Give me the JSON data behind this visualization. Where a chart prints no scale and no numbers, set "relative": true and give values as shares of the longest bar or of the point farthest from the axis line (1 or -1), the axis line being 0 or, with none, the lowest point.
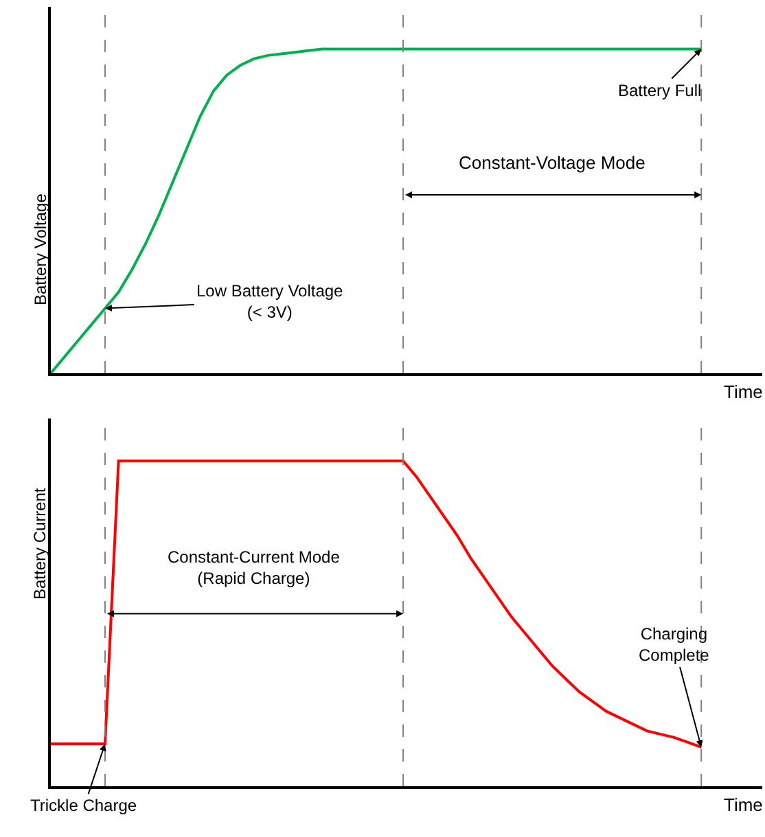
{
  "chart_data": [
    {
      "type": "line",
      "relative": true,
      "ylabel": "Battery Voltage",
      "xlabel": "Time",
      "grid": "x",
      "marker": "none",
      "line_style": "solid",
      "categories": [
        null,
        null,
        null,
        null,
        null,
        null,
        null,
        null,
        null,
        null,
        null,
        null,
        null,
        null,
        null,
        null,
        null,
        null,
        null,
        null,
        null,
        null,
        null,
        null,
        null,
        null,
        null,
        null,
        null,
        null,
        null,
        null,
        null,
        null,
        null,
        null,
        null,
        null,
        null,
        null,
        null,
        null,
        null,
        null,
        null,
        null,
        null,
        null,
        null
      ],
      "series": [
        {
          "color": "#00b050",
          "values": [
            0,
            0.05,
            0.1,
            0.15,
            0.2,
            0.25,
            0.32,
            0.4,
            0.49,
            0.59,
            0.69,
            0.79,
            0.87,
            0.92,
            0.95,
            0.97,
            0.98,
            0.985,
            0.99,
            0.995,
            1,
            1,
            1,
            1,
            1,
            1,
            1,
            1,
            1,
            1,
            1,
            1,
            1,
            1,
            1,
            1,
            1,
            1,
            1,
            1,
            1,
            1,
            1,
            1,
            1,
            1,
            1,
            1,
            1
          ]
        }
      ],
      "annotations": [
        "Battery Full",
        "Constant-Voltage Mode",
        "Low Battery Voltage\n(< 3V)"
      ]
    },
    {
      "type": "line",
      "relative": true,
      "ylabel": "Battery Current",
      "xlabel": "Time",
      "grid": "x",
      "marker": "none",
      "line_style": "solid",
      "categories": [
        null,
        null,
        null,
        null,
        null,
        null,
        null,
        null,
        null,
        null,
        null,
        null,
        null,
        null,
        null,
        null,
        null,
        null,
        null,
        null,
        null,
        null,
        null,
        null,
        null,
        null,
        null,
        null,
        null,
        null,
        null,
        null,
        null,
        null,
        null,
        null,
        null,
        null,
        null,
        null,
        null,
        null,
        null,
        null,
        null,
        null,
        null,
        null,
        null
      ],
      "series": [
        {
          "color": "#ff0000",
          "values": [
            0.13,
            0.13,
            0.13,
            0.13,
            0.13,
            1,
            1,
            1,
            1,
            1,
            1,
            1,
            1,
            1,
            1,
            1,
            1,
            1,
            1,
            1,
            1,
            1,
            1,
            1,
            1,
            1,
            1,
            0.95,
            0.89,
            0.83,
            0.77,
            0.7,
            0.64,
            0.58,
            0.52,
            0.47,
            0.42,
            0.37,
            0.33,
            0.29,
            0.26,
            0.23,
            0.21,
            0.19,
            0.17,
            0.16,
            0.15,
            0.135,
            0.12
          ]
        }
      ],
      "annotations": [
        "Constant-Current Mode\n(Rapid Charge)",
        "Charging\nComplete",
        "Trickle Charge"
      ]
    }
  ]
}
